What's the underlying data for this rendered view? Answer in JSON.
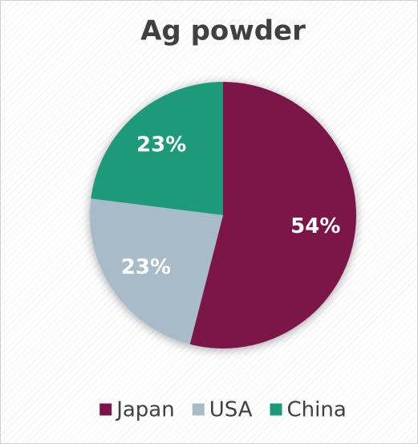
{
  "chart_data": {
    "type": "pie",
    "title": "Ag powder",
    "categories": [
      "Japan",
      "USA",
      "China"
    ],
    "values": [
      54,
      23,
      23
    ],
    "value_labels": [
      "54%",
      "23%",
      "23%"
    ],
    "colors": [
      "#7b1449",
      "#a7bcc8",
      "#1a9a7a"
    ],
    "legend": "bottom"
  }
}
